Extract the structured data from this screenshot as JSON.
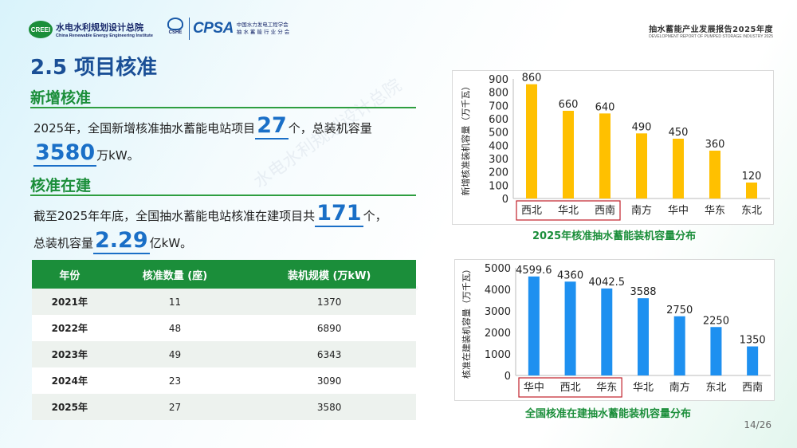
{
  "header": {
    "org_mark": "CREEI",
    "org_name": "水电水利规划设计总院",
    "org_name_en": "China Renewable Energy Engineering Institute",
    "cshe_label": "CSHE",
    "cpsa_label": "CPSA",
    "cpsa_line1": "中国水力发电工程学会",
    "cpsa_line2": "抽 水 蓄 能 行 业 分 会",
    "report_title": "抽水蓄能产业发展报告2025年度",
    "report_title_en": "DEVELOPMENT REPORT OF PUMPED STORAGE INDUSTRY 2025"
  },
  "section_title": "2.5 项目核准",
  "new_approval": {
    "heading": "新增核准",
    "text1": "2025年，全国新增核准抽水蓄能电站项目",
    "count": "27",
    "text2": "个，总装机容量",
    "capacity": "3580",
    "unit": "万kW。"
  },
  "under_construction": {
    "heading": "核准在建",
    "text1": "截至2025年年底，全国抽水蓄能电站核准在建项目共",
    "count": "171",
    "text2": "个，",
    "text3": "总装机容量",
    "capacity": "2.29",
    "unit": "亿kW。"
  },
  "table": {
    "headers": [
      "年份",
      "核准数量 (座)",
      "装机规模 (万kW)"
    ],
    "rows": [
      [
        "2021年",
        "11",
        "1370"
      ],
      [
        "2022年",
        "48",
        "6890"
      ],
      [
        "2023年",
        "49",
        "6343"
      ],
      [
        "2024年",
        "23",
        "3090"
      ],
      [
        "2025年",
        "27",
        "3580"
      ]
    ]
  },
  "chart_data": [
    {
      "type": "bar",
      "title": "2025年核准抽水蓄能装机容量分布",
      "ylabel": "新增核准装机容量（万千瓦）",
      "categories": [
        "西北",
        "华北",
        "西南",
        "南方",
        "华中",
        "华东",
        "东北"
      ],
      "values": [
        860,
        660,
        640,
        490,
        450,
        360,
        120
      ],
      "value_labels": [
        "860",
        "660",
        "640",
        "490",
        "450",
        "360",
        "120"
      ],
      "ylim": [
        0,
        900
      ],
      "yticks": [
        0,
        100,
        200,
        300,
        400,
        500,
        600,
        700,
        800,
        900
      ],
      "highlighted_categories": [
        "西北",
        "华北",
        "西南"
      ],
      "color": "#ffc000",
      "grid": false
    },
    {
      "type": "bar",
      "title": "全国核准在建抽水蓄能装机容量分布",
      "ylabel": "核准在建装机容量（万千瓦）",
      "categories": [
        "华中",
        "西北",
        "华东",
        "华北",
        "南方",
        "东北",
        "西南"
      ],
      "values": [
        4599.6,
        4360,
        4042.5,
        3588,
        2750,
        2250,
        1350
      ],
      "value_labels": [
        "4599.6",
        "4360",
        "4042.5",
        "3588",
        "2750",
        "2250",
        "1350"
      ],
      "ylim": [
        0,
        5000
      ],
      "yticks": [
        0,
        1000,
        2000,
        3000,
        4000,
        5000
      ],
      "highlighted_categories": [
        "华中",
        "西北",
        "华东"
      ],
      "color": "#1e90f0",
      "grid": false
    }
  ],
  "watermark": "水电水利规划设计总院",
  "page_number": "14/26"
}
